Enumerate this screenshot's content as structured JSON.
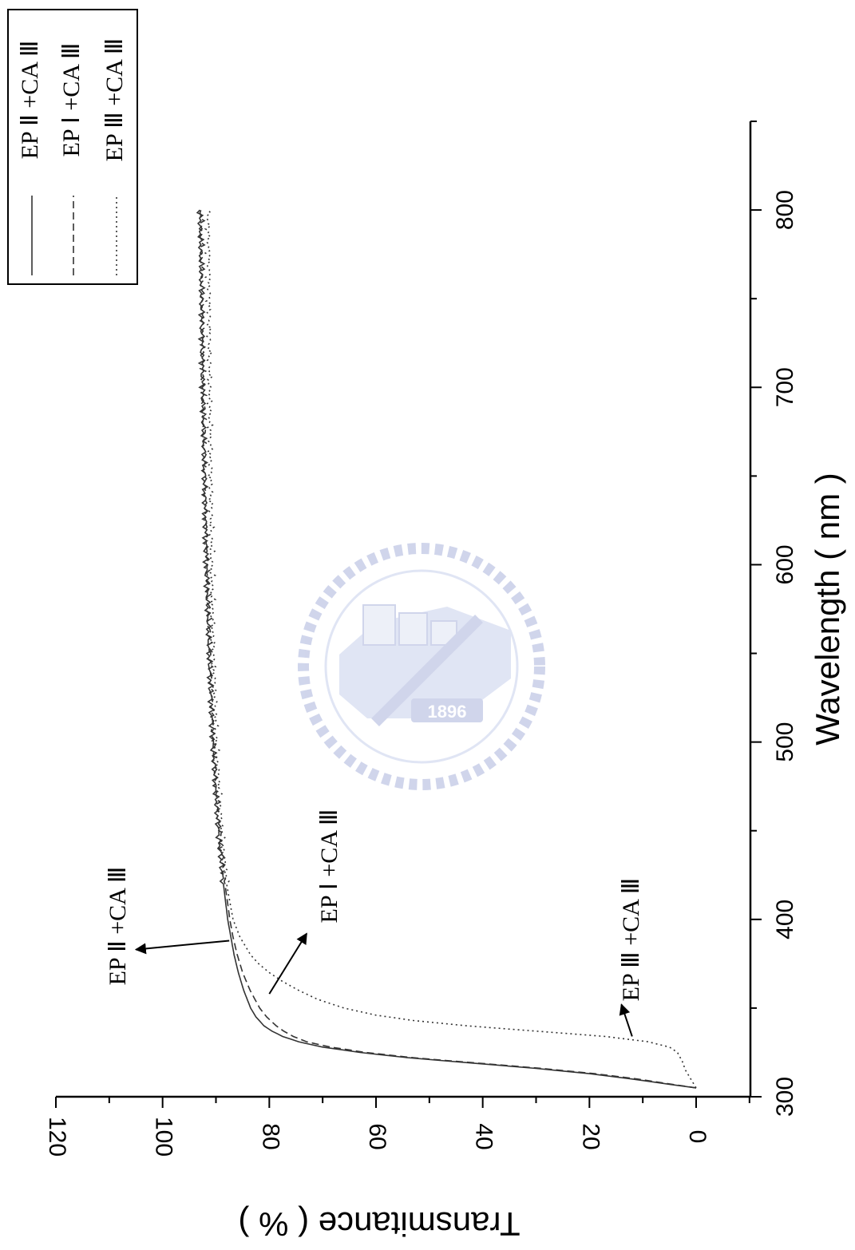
{
  "chart_data": {
    "type": "line",
    "xlabel": "Wavelength ( nm )",
    "ylabel": "Transmitance ( % )",
    "xlim": [
      300,
      850
    ],
    "ylim": [
      -10,
      120
    ],
    "x_ticks": [
      "300",
      "400",
      "500",
      "600",
      "700",
      "800"
    ],
    "y_ticks": [
      "0",
      "20",
      "40",
      "60",
      "80",
      "100",
      "120"
    ],
    "orientation": "rotated 90 degrees clockwise",
    "grid": false,
    "legend_position": "top-right",
    "series": [
      {
        "name": "EP Ⅱ +CA Ⅲ",
        "style": "solid",
        "x": [
          305,
          307,
          310,
          313,
          316,
          319,
          322,
          325,
          328,
          331,
          334,
          337,
          340,
          345,
          350,
          360,
          370,
          380,
          390,
          400,
          420,
          440,
          460,
          480,
          500,
          550,
          600,
          650,
          700,
          750,
          800
        ],
        "y": [
          0,
          5,
          12,
          20,
          30,
          42,
          54,
          63,
          70,
          74.5,
          77.5,
          79.5,
          81,
          82.5,
          83.5,
          84.8,
          85.8,
          86.6,
          87.2,
          87.8,
          88.6,
          89.3,
          89.8,
          90.2,
          90.6,
          91.3,
          91.8,
          92.2,
          92.5,
          92.7,
          93
        ]
      },
      {
        "name": "EP Ⅰ +CA Ⅲ",
        "style": "dashed",
        "x": [
          305,
          307,
          310,
          313,
          316,
          319,
          322,
          325,
          328,
          331,
          334,
          337,
          340,
          345,
          350,
          360,
          370,
          380,
          390,
          400,
          420,
          440,
          460,
          480,
          500,
          550,
          600,
          650,
          700,
          750,
          800
        ],
        "y": [
          0,
          4.5,
          11,
          19,
          29,
          41,
          53,
          62,
          68.5,
          73,
          75.5,
          77.3,
          78.7,
          80.5,
          81.8,
          83.6,
          85,
          86,
          86.8,
          87.4,
          88.3,
          89,
          89.6,
          90.1,
          90.5,
          91.2,
          91.7,
          92.1,
          92.4,
          92.6,
          92.8
        ]
      },
      {
        "name": "EP Ⅲ +CA Ⅲ",
        "style": "dotted",
        "x": [
          305,
          310,
          315,
          320,
          325,
          328,
          331,
          334,
          337,
          340,
          343,
          346,
          350,
          355,
          360,
          365,
          370,
          375,
          380,
          390,
          400,
          420,
          440,
          460,
          480,
          500,
          550,
          600,
          650,
          700,
          750,
          800
        ],
        "y": [
          0,
          1,
          2,
          2.6,
          3.5,
          5,
          9,
          17,
          30,
          43,
          53,
          60,
          66,
          71,
          74.5,
          77.5,
          80,
          82,
          83.5,
          85.5,
          86.8,
          88,
          88.7,
          89.2,
          89.6,
          90,
          90.5,
          90.8,
          91,
          91.2,
          91.3,
          91.5
        ]
      }
    ],
    "annotations": [
      {
        "text": "EP Ⅱ +CA Ⅲ",
        "arrow_tail": [
          388,
          87.5
        ],
        "arrow_head": [
          383,
          105
        ]
      },
      {
        "text": "EP Ⅰ +CA Ⅲ",
        "arrow_tail": [
          358,
          80
        ],
        "arrow_head": [
          392,
          73
        ]
      },
      {
        "text": "EP Ⅲ +CA Ⅲ",
        "arrow_tail": [
          334,
          12
        ],
        "arrow_head": [
          352,
          14
        ]
      }
    ]
  },
  "watermark": {
    "text": "1896",
    "color": "#aab4dc"
  },
  "colors": {
    "ink": "#000000",
    "series_line": "#333333"
  }
}
